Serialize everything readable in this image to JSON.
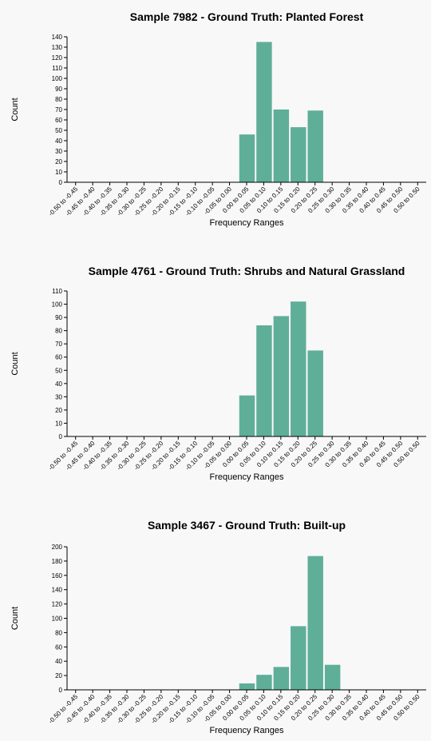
{
  "chart_data": [
    {
      "type": "bar",
      "title": "Sample 7982 - Ground Truth: Planted Forest",
      "xlabel": "Frequency Ranges",
      "ylabel": "Count",
      "ylim": [
        0,
        140
      ],
      "yticks": [
        0,
        10,
        20,
        30,
        40,
        50,
        60,
        70,
        80,
        90,
        100,
        110,
        120,
        130,
        140
      ],
      "categories": [
        "-0.50 to -0.45",
        "-0.45 to -0.40",
        "-0.40 to -0.35",
        "-0.35 to -0.30",
        "-0.30 to -0.25",
        "-0.25 to -0.20",
        "-0.20 to -0.15",
        "-0.15 to -0.10",
        "-0.10 to -0.05",
        "-0.05 to 0.00",
        "0.00 to 0.05",
        "0.05 to 0.10",
        "0.10 to 0.15",
        "0.15 to 0.20",
        "0.20 to 0.25",
        "0.25 to 0.30",
        "0.30 to 0.35",
        "0.35 to 0.40",
        "0.40 to 0.45",
        "0.45 to 0.50",
        "0.50 to 0.50"
      ],
      "values": [
        0,
        0,
        0,
        0,
        0,
        0,
        0,
        0,
        0,
        0,
        46,
        135,
        70,
        53,
        69,
        0,
        0,
        0,
        0,
        0,
        0
      ],
      "color": "#5fae98",
      "grid": false
    },
    {
      "type": "bar",
      "title": "Sample 4761 - Ground Truth: Shrubs and Natural Grassland",
      "xlabel": "Frequency Ranges",
      "ylabel": "Count",
      "ylim": [
        0,
        110
      ],
      "yticks": [
        0,
        10,
        20,
        30,
        40,
        50,
        60,
        70,
        80,
        90,
        100,
        110
      ],
      "categories": [
        "-0.50 to -0.45",
        "-0.45 to -0.40",
        "-0.40 to -0.35",
        "-0.35 to -0.30",
        "-0.30 to -0.25",
        "-0.25 to -0.20",
        "-0.20 to -0.15",
        "-0.15 to -0.10",
        "-0.10 to -0.05",
        "-0.05 to 0.00",
        "0.00 to 0.05",
        "0.05 to 0.10",
        "0.10 to 0.15",
        "0.15 to 0.20",
        "0.20 to 0.25",
        "0.25 to 0.30",
        "0.30 to 0.35",
        "0.35 to 0.40",
        "0.40 to 0.45",
        "0.45 to 0.50",
        "0.50 to 0.50"
      ],
      "values": [
        0,
        0,
        0,
        0,
        0,
        0,
        0,
        0,
        0,
        0,
        31,
        84,
        91,
        102,
        65,
        0,
        0,
        0,
        0,
        0,
        0
      ],
      "color": "#5fae98",
      "grid": false
    },
    {
      "type": "bar",
      "title": "Sample 3467 - Ground Truth: Built-up",
      "xlabel": "Frequency Ranges",
      "ylabel": "Count",
      "ylim": [
        0,
        200
      ],
      "yticks": [
        0,
        20,
        40,
        60,
        80,
        100,
        120,
        140,
        160,
        180,
        200
      ],
      "categories": [
        "-0.50 to -0.45",
        "-0.45 to -0.40",
        "-0.40 to -0.35",
        "-0.35 to -0.30",
        "-0.30 to -0.25",
        "-0.25 to -0.20",
        "-0.20 to -0.15",
        "-0.15 to -0.10",
        "-0.10 to -0.05",
        "-0.05 to 0.00",
        "0.00 to 0.05",
        "0.05 to 0.10",
        "0.10 to 0.15",
        "0.15 to 0.20",
        "0.20 to 0.25",
        "0.25 to 0.30",
        "0.30 to 0.35",
        "0.35 to 0.40",
        "0.40 to 0.45",
        "0.45 to 0.50",
        "0.50 to 0.50"
      ],
      "values": [
        0,
        0,
        0,
        0,
        0,
        0,
        0,
        0,
        0,
        0,
        9,
        21,
        32,
        89,
        187,
        35,
        0,
        0,
        0,
        0,
        0
      ],
      "color": "#5fae98",
      "grid": false
    }
  ]
}
